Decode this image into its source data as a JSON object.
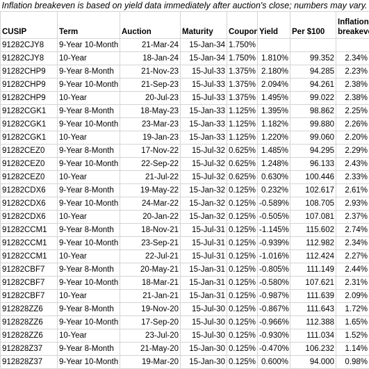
{
  "note": "Inflation breakeven is based on yield data immediately after auction's close; numbers may vary.",
  "headers": [
    "CUSIP",
    "Term",
    "Auction",
    "Maturity",
    "Coupon",
    "Yield",
    "Per $100",
    "Inflation breakeven"
  ],
  "rows": [
    [
      "91282CJY8",
      "9-Year 10-Month",
      "21-Mar-24",
      "15-Jan-34",
      "1.750%",
      "",
      "",
      ""
    ],
    [
      "91282CJY8",
      "10-Year",
      "18-Jan-24",
      "15-Jan-34",
      "1.750%",
      "1.810%",
      "99.352",
      "2.34%"
    ],
    [
      "91282CHP9",
      "9-Year 8-Month",
      "21-Nov-23",
      "15-Jul-33",
      "1.375%",
      "2.180%",
      "94.285",
      "2.23%"
    ],
    [
      "91282CHP9",
      "9-Year 10-Month",
      "21-Sep-23",
      "15-Jul-33",
      "1.375%",
      "2.094%",
      "94.261",
      "2.38%"
    ],
    [
      "91282CHP9",
      "10-Year",
      "20-Jul-23",
      "15-Jul-33",
      "1.375%",
      "1.495%",
      "99.022",
      "2.38%"
    ],
    [
      "91282CGK1",
      "9-Year 8-Month",
      "18-May-23",
      "15-Jan-33",
      "1.125%",
      "1.395%",
      "98.862",
      "2.25%"
    ],
    [
      "91282CGK1",
      "9-Year 10-Month",
      "23-Mar-23",
      "15-Jan-33",
      "1.125%",
      "1.182%",
      "99.880",
      "2.26%"
    ],
    [
      "91282CGK1",
      "10-Year",
      "19-Jan-23",
      "15-Jan-33",
      "1.125%",
      "1.220%",
      "99.060",
      "2.20%"
    ],
    [
      "91282CEZ0",
      "9-Year 8-Month",
      "17-Nov-22",
      "15-Jul-32",
      "0.625%",
      "1.485%",
      "94.295",
      "2.29%"
    ],
    [
      "91282CEZ0",
      "9-Year 10-Month",
      "22-Sep-22",
      "15-Jul-32",
      "0.625%",
      "1.248%",
      "96.133",
      "2.43%"
    ],
    [
      "91282CEZ0",
      "10-Year",
      "21-Jul-22",
      "15-Jul-32",
      "0.625%",
      "0.630%",
      "100.446",
      "2.33%"
    ],
    [
      "91282CDX6",
      "9-Year 8-Month",
      "19-May-22",
      "15-Jan-32",
      "0.125%",
      "0.232%",
      "102.617",
      "2.61%"
    ],
    [
      "91282CDX6",
      "9-Year 10-Month",
      "24-Mar-22",
      "15-Jan-32",
      "0.125%",
      "-0.589%",
      "108.705",
      "2.93%"
    ],
    [
      "91282CDX6",
      "10-Year",
      "20-Jan-22",
      "15-Jan-32",
      "0.125%",
      "-0.505%",
      "107.081",
      "2.37%"
    ],
    [
      "91282CCM1",
      "9-Year 8-Month",
      "18-Nov-21",
      "15-Jul-31",
      "0.125%",
      "-1.145%",
      "115.602",
      "2.74%"
    ],
    [
      "91282CCM1",
      "9-Year 10-Month",
      "23-Sep-21",
      "15-Jul-31",
      "0.125%",
      "-0.939%",
      "112.982",
      "2.34%"
    ],
    [
      "91282CCM1",
      "10-Year",
      "22-Jul-21",
      "15-Jul-31",
      "0.125%",
      "-1.016%",
      "112.424",
      "2.27%"
    ],
    [
      "91282CBF7",
      "9-Year 8-Month",
      "20-May-21",
      "15-Jan-31",
      "0.125%",
      "-0.805%",
      "111.149",
      "2.44%"
    ],
    [
      "91282CBF7",
      "9-Year 10-Month",
      "18-Mar-21",
      "15-Jan-31",
      "0.125%",
      "-0.580%",
      "107.621",
      "2.31%"
    ],
    [
      "91282CBF7",
      "10-Year",
      "21-Jan-21",
      "15-Jan-31",
      "0.125%",
      "-0.987%",
      "111.639",
      "2.09%"
    ],
    [
      "912828ZZ6",
      "9-Year 8-Month",
      "19-Nov-20",
      "15-Jul-30",
      "0.125%",
      "-0.867%",
      "111.643",
      "1.72%"
    ],
    [
      "912828ZZ6",
      "9-Year 10-Month",
      "17-Sep-20",
      "15-Jul-30",
      "0.125%",
      "-0.966%",
      "112.388",
      "1.65%"
    ],
    [
      "912828ZZ6",
      "10-Year",
      "23-Jul-20",
      "15-Jul-30",
      "0.125%",
      "-0.930%",
      "111.034",
      "1.52%"
    ],
    [
      "912828Z37",
      "9-Year 8-Month",
      "21-May-20",
      "15-Jan-30",
      "0.125%",
      "-0.470%",
      "106.232",
      "1.14%"
    ],
    [
      "912828Z37",
      "9-Year 10-Month",
      "19-Mar-20",
      "15-Jan-30",
      "0.125%",
      "0.600%",
      "94.000",
      "0.98%"
    ]
  ]
}
